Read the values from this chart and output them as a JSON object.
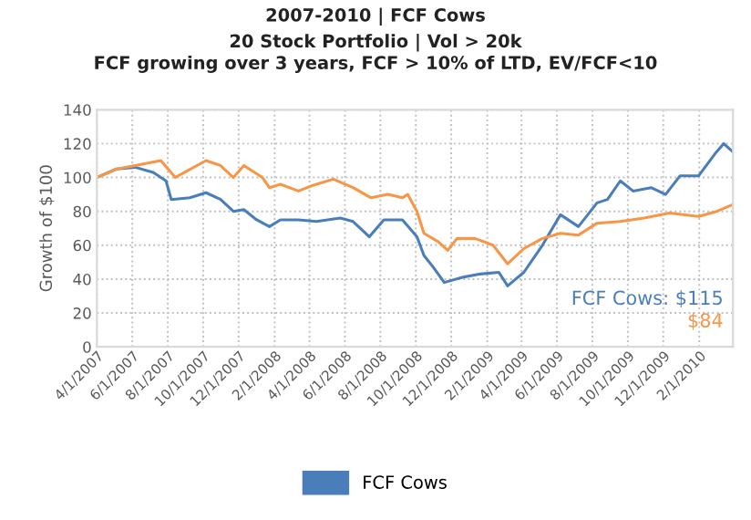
{
  "chart_data": {
    "type": "line",
    "title": "2007-2010 | FCF Cows",
    "subtitle": "20 Stock Portfolio | Vol > 20k\nFCF growing over 3 years, FCF > 10% of LTD, EV/FCF<10",
    "ylabel": "Growth of $100",
    "annotations": [
      "FCF Cows: $115",
      "$84"
    ],
    "series": [
      {
        "name": "FCF Cows",
        "color": "#4a7ebb",
        "x": [
          "2007-04-01",
          "2007-05-05",
          "2007-06-06",
          "2007-07-07",
          "2007-07-29",
          "2007-08-07",
          "2007-09-08",
          "2007-10-06",
          "2007-10-31",
          "2007-11-22",
          "2007-12-10",
          "2008-01-01",
          "2008-01-23",
          "2008-02-11",
          "2008-03-13",
          "2008-04-13",
          "2008-05-24",
          "2008-06-15",
          "2008-07-13",
          "2008-08-07",
          "2008-09-08",
          "2008-10-03",
          "2008-10-15",
          "2008-10-31",
          "2008-11-19",
          "2008-12-20",
          "2009-01-20",
          "2009-02-21",
          "2009-03-08",
          "2009-04-05",
          "2009-05-07",
          "2009-06-07",
          "2009-07-08",
          "2009-08-09",
          "2009-08-27",
          "2009-09-18",
          "2009-10-10",
          "2009-11-10",
          "2009-12-05",
          "2009-12-30",
          "2010-01-31",
          "2010-02-28",
          "2010-03-15",
          "2010-03-31"
        ],
        "values": [
          100,
          105,
          106,
          103,
          98,
          87,
          88,
          91,
          87,
          80,
          81,
          75,
          71,
          75,
          75,
          74,
          76,
          74,
          65,
          75,
          75,
          65,
          54,
          47,
          38,
          41,
          43,
          44,
          36,
          44,
          60,
          78,
          71,
          85,
          87,
          98,
          92,
          94,
          90,
          101,
          101,
          114,
          120,
          115
        ]
      },
      {
        "color": "#f79646",
        "x": [
          "2007-04-01",
          "2007-05-05",
          "2007-06-06",
          "2007-07-20",
          "2007-08-14",
          "2007-09-04",
          "2007-10-06",
          "2007-10-31",
          "2007-11-22",
          "2007-12-10",
          "2008-01-11",
          "2008-01-23",
          "2008-02-11",
          "2008-03-13",
          "2008-04-04",
          "2008-05-12",
          "2008-06-15",
          "2008-07-16",
          "2008-08-14",
          "2008-09-08",
          "2008-09-17",
          "2008-10-03",
          "2008-10-15",
          "2008-11-09",
          "2008-11-25",
          "2008-12-11",
          "2009-01-11",
          "2009-02-11",
          "2009-03-08",
          "2009-04-05",
          "2009-05-07",
          "2009-06-07",
          "2009-07-08",
          "2009-08-09",
          "2009-09-18",
          "2009-10-29",
          "2009-12-12",
          "2010-01-31",
          "2010-03-03",
          "2010-03-31"
        ],
        "values": [
          100,
          105,
          107,
          110,
          100,
          104,
          110,
          107,
          100,
          107,
          100,
          94,
          96,
          92,
          95,
          99,
          94,
          88,
          90,
          88,
          90,
          80,
          67,
          62,
          57,
          64,
          64,
          60,
          49,
          58,
          64,
          67,
          66,
          73,
          74,
          76,
          79,
          77,
          80,
          84
        ]
      }
    ],
    "xlim": [
      "2007-04-01",
      "2010-03-31"
    ],
    "xticks": [
      {
        "value": "2007-04-01",
        "label": "4/1/2007"
      },
      {
        "value": "2007-06-01",
        "label": "6/1/2007"
      },
      {
        "value": "2007-08-01",
        "label": "8/1/2007"
      },
      {
        "value": "2007-10-01",
        "label": "10/1/2007"
      },
      {
        "value": "2007-12-01",
        "label": "12/1/2007"
      },
      {
        "value": "2008-02-01",
        "label": "2/1/2008"
      },
      {
        "value": "2008-04-01",
        "label": "4/1/2008"
      },
      {
        "value": "2008-06-01",
        "label": "6/1/2008"
      },
      {
        "value": "2008-08-01",
        "label": "8/1/2008"
      },
      {
        "value": "2008-10-01",
        "label": "10/1/2008"
      },
      {
        "value": "2008-12-01",
        "label": "12/1/2008"
      },
      {
        "value": "2009-02-01",
        "label": "2/1/2009"
      },
      {
        "value": "2009-04-01",
        "label": "4/1/2009"
      },
      {
        "value": "2009-06-01",
        "label": "6/1/2009"
      },
      {
        "value": "2009-08-01",
        "label": "8/1/2009"
      },
      {
        "value": "2009-10-01",
        "label": "10/1/2009"
      },
      {
        "value": "2009-12-01",
        "label": "12/1/2009"
      },
      {
        "value": "2010-02-01",
        "label": "2/1/2010"
      }
    ],
    "ylim": [
      0,
      140
    ],
    "yticks": [
      0,
      20,
      40,
      60,
      80,
      100,
      120,
      140
    ],
    "grid": true,
    "legend": "bottom",
    "marker": "none",
    "line_style": "solid"
  }
}
